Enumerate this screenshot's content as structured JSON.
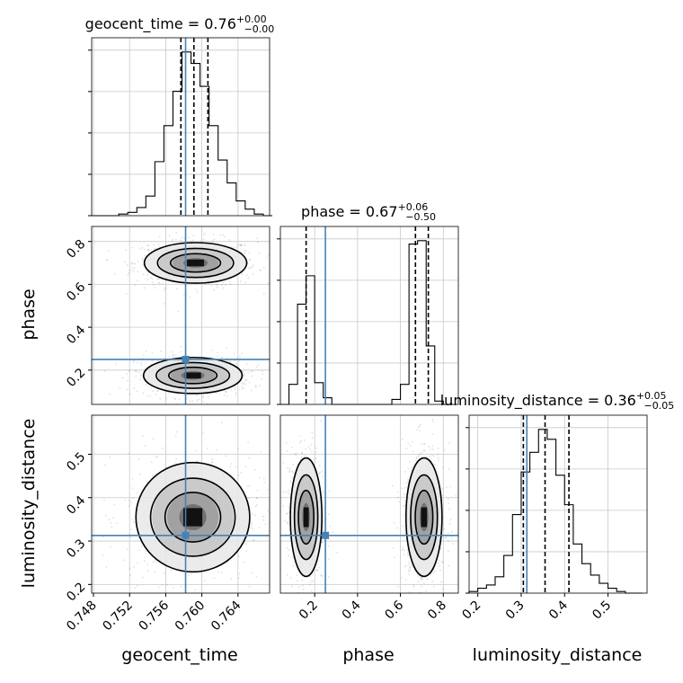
{
  "chart_data": {
    "type": "corner",
    "parameters": [
      "geocent_time",
      "phase",
      "luminosity_distance"
    ],
    "titles": [
      {
        "name": "geocent_time",
        "median": "0.76",
        "plus": "+0.00",
        "minus": "−0.00"
      },
      {
        "name": "phase",
        "median": "0.67",
        "plus": "+0.06",
        "minus": "−0.50"
      },
      {
        "name": "luminosity_distance",
        "median": "0.36",
        "plus": "+0.05",
        "minus": "−0.05"
      }
    ],
    "ranges": {
      "geocent_time": [
        0.7478,
        0.7675
      ],
      "phase": [
        0.04,
        0.87
      ],
      "luminosity_distance": [
        0.18,
        0.59
      ]
    },
    "ticks": {
      "geocent_time": [
        "0.748",
        "0.752",
        "0.756",
        "0.760",
        "0.764"
      ],
      "phase": [
        "0.2",
        "0.4",
        "0.6",
        "0.8"
      ],
      "luminosity_distance": [
        "0.2",
        "0.3",
        "0.4",
        "0.5"
      ]
    },
    "truths": {
      "geocent_time": 0.7582,
      "phase": 0.25,
      "luminosity_distance": 0.313
    },
    "quantiles": {
      "geocent_time": [
        0.75768,
        0.75912,
        0.76067
      ],
      "phase": [
        0.16,
        0.67,
        0.73
      ],
      "luminosity_distance": [
        0.305,
        0.355,
        0.41
      ]
    },
    "hist_1d": {
      "geocent_time": {
        "edges": [
          0.7478,
          0.7488,
          0.7498,
          0.7508,
          0.7518,
          0.7528,
          0.7538,
          0.7548,
          0.7558,
          0.7568,
          0.7578,
          0.7588,
          0.7598,
          0.7608,
          0.7618,
          0.7628,
          0.7638,
          0.7648,
          0.7658,
          0.7668,
          0.7678
        ],
        "counts": [
          0,
          0,
          0,
          1,
          2,
          5,
          12,
          33,
          55,
          76,
          100,
          93,
          79,
          55,
          34,
          20,
          9,
          4,
          1,
          0
        ]
      },
      "phase": {
        "edges": [
          0.04,
          0.08,
          0.12,
          0.16,
          0.2,
          0.24,
          0.28,
          0.32,
          0.36,
          0.4,
          0.44,
          0.48,
          0.52,
          0.56,
          0.6,
          0.64,
          0.68,
          0.72,
          0.76,
          0.8,
          0.84
        ],
        "counts": [
          0,
          12,
          60,
          77,
          13,
          4,
          0,
          0,
          0,
          0,
          0,
          0,
          0,
          3,
          12,
          96,
          98,
          35,
          2,
          0
        ]
      },
      "luminosity_distance": {
        "edges": [
          0.18,
          0.2,
          0.22,
          0.24,
          0.26,
          0.28,
          0.3,
          0.32,
          0.34,
          0.36,
          0.38,
          0.4,
          0.42,
          0.44,
          0.46,
          0.48,
          0.5,
          0.52,
          0.54,
          0.56,
          0.58
        ],
        "counts": [
          1,
          3,
          5,
          10,
          23,
          48,
          74,
          86,
          100,
          94,
          72,
          54,
          30,
          18,
          11,
          6,
          3,
          1,
          0,
          0
        ]
      }
    },
    "hist_2d_modes": {
      "phase_vs_geocent_time": [
        {
          "center": [
            0.7593,
            0.7
          ],
          "spread": [
            0.0027,
            0.045
          ],
          "weight": 1.0
        },
        {
          "center": [
            0.759,
            0.175
          ],
          "spread": [
            0.0026,
            0.04
          ],
          "weight": 0.8
        }
      ],
      "luminosity_distance_vs_geocent_time": [
        {
          "center": [
            0.759,
            0.355
          ],
          "spread": [
            0.003,
            0.06
          ],
          "weight": 1.0
        }
      ],
      "luminosity_distance_vs_phase": [
        {
          "center": [
            0.16,
            0.355
          ],
          "spread": [
            0.035,
            0.065
          ],
          "weight": 0.85
        },
        {
          "center": [
            0.71,
            0.355
          ],
          "spread": [
            0.04,
            0.065
          ],
          "weight": 1.0
        }
      ]
    },
    "axis_labels": {
      "x": [
        "geocent_time",
        "phase",
        "luminosity_distance"
      ],
      "y": [
        "",
        "phase",
        "luminosity_distance"
      ]
    },
    "truth_color": "#4682b4",
    "grid": true
  }
}
